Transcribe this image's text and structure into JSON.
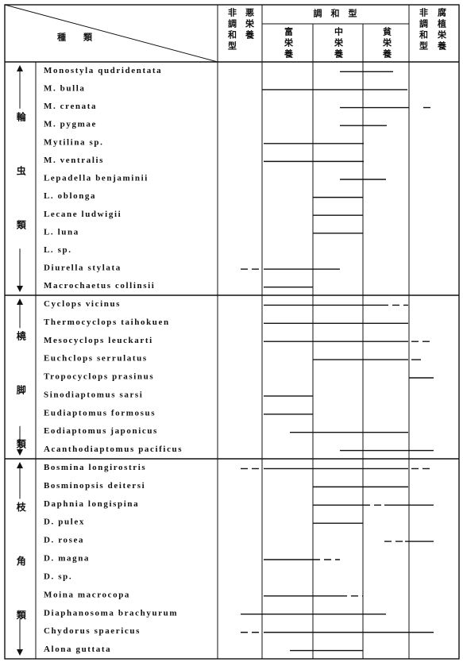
{
  "header": {
    "species": "種　　類",
    "harmonic": "調　和　型",
    "columns": [
      "非調和型",
      "悪栄養",
      "富栄養",
      "中栄養",
      "貧栄養",
      "非調和型",
      "腐植栄養"
    ]
  },
  "groups": [
    {
      "label": "輪虫類",
      "species": [
        "Monostyla qudridentata",
        "M. bulla",
        "M. crenata",
        "M. pygmae",
        "Mytilina sp.",
        "M. ventralis",
        "Lepadella benjaminii",
        "L. oblonga",
        "Lecane ludwigii",
        "L. luna",
        "L. sp.",
        "Diurella stylata",
        "Macrochaetus collinsii"
      ]
    },
    {
      "label": "橈脚類",
      "species": [
        "Cyclops vicinus",
        "Thermocyclops taihokuen",
        "Mesocyclops leuckarti",
        "Euchclops serrulatus",
        "Tropocyclops prasinus",
        "Sinodiaptomus sarsi",
        "Eudiaptomus formosus",
        "Eodiaptomus japonicus",
        "Acanthodiaptomus pacificus"
      ]
    },
    {
      "label": "枝角類",
      "species": [
        "Bosmina longirostris",
        "Bosminopsis deitersi",
        "Daphnia longispina",
        "D. pulex",
        "D. rosea",
        "D. magna",
        "D. sp.",
        "Moina macrocopa",
        "Diaphanosoma brachyurum",
        "Chydorus spaericus",
        "Alona guttata"
      ]
    }
  ]
}
